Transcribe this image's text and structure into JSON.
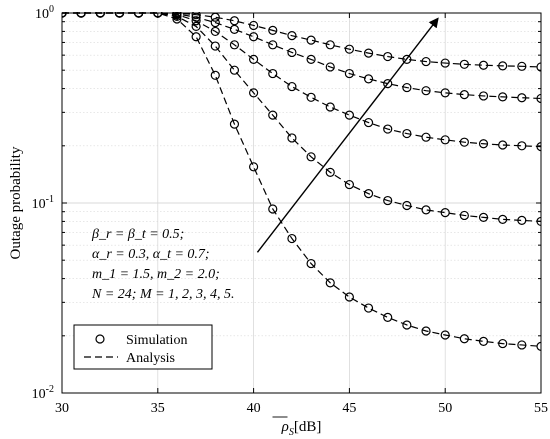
{
  "chart_data": {
    "type": "line",
    "xlabel": "ρ_S [dB]",
    "xlabel_parts": {
      "symbol": "ρ",
      "subscript": "S",
      "unit": "[dB]"
    },
    "ylabel": "Outage probability",
    "xlim": [
      30,
      55
    ],
    "ylim": [
      0.01,
      1
    ],
    "yscale": "log",
    "x_ticks": [
      "30",
      "35",
      "40",
      "45",
      "50",
      "55"
    ],
    "y_ticks": [
      {
        "base": "10",
        "exp": "-2"
      },
      {
        "base": "10",
        "exp": "-1"
      },
      {
        "base": "10",
        "exp": "0"
      }
    ],
    "grid": true,
    "legend": {
      "placement": "lower-left",
      "entries": [
        {
          "label": "Simulation",
          "style": "circle-marker"
        },
        {
          "label": "Analysis",
          "style": "dashed-line"
        }
      ]
    },
    "annotation_lines": [
      "β_r = β_t = 0.5;",
      "α_r = 0.3, α_t = 0.7;",
      "m_1 = 1.5, m_2 = 2.0;",
      "N = 24; M = 1, 2, 3, 4, 5."
    ],
    "x": [
      30,
      31,
      32,
      33,
      34,
      35,
      36,
      37,
      38,
      39,
      40,
      41,
      42,
      43,
      44,
      45,
      46,
      47,
      48,
      49,
      50,
      51,
      52,
      53,
      54,
      55
    ],
    "series": [
      {
        "values": [
          1.0,
          1.0,
          1.0,
          1.0,
          1.0,
          1.0,
          0.93,
          0.75,
          0.47,
          0.26,
          0.155,
          0.093,
          0.065,
          0.048,
          0.038,
          0.032,
          0.028,
          0.025,
          0.0228,
          0.0212,
          0.0202,
          0.0193,
          0.0187,
          0.0182,
          0.0179,
          0.0176
        ]
      },
      {
        "values": [
          1.0,
          1.0,
          1.0,
          1.0,
          1.0,
          1.0,
          0.96,
          0.85,
          0.67,
          0.5,
          0.38,
          0.29,
          0.22,
          0.175,
          0.145,
          0.125,
          0.112,
          0.103,
          0.097,
          0.092,
          0.089,
          0.086,
          0.084,
          0.082,
          0.081,
          0.08
        ]
      },
      {
        "values": [
          1.0,
          1.0,
          1.0,
          1.0,
          1.0,
          1.0,
          0.98,
          0.91,
          0.8,
          0.68,
          0.57,
          0.48,
          0.41,
          0.36,
          0.32,
          0.29,
          0.265,
          0.245,
          0.232,
          0.222,
          0.215,
          0.209,
          0.205,
          0.202,
          0.2,
          0.198
        ]
      },
      {
        "values": [
          1.0,
          1.0,
          1.0,
          1.0,
          1.0,
          1.0,
          0.99,
          0.95,
          0.89,
          0.82,
          0.75,
          0.68,
          0.62,
          0.57,
          0.52,
          0.48,
          0.45,
          0.425,
          0.405,
          0.39,
          0.38,
          0.372,
          0.366,
          0.362,
          0.358,
          0.355
        ]
      },
      {
        "values": [
          1.0,
          1.0,
          1.0,
          1.0,
          1.0,
          1.0,
          1.0,
          0.98,
          0.95,
          0.91,
          0.86,
          0.81,
          0.76,
          0.72,
          0.68,
          0.645,
          0.615,
          0.59,
          0.57,
          0.555,
          0.545,
          0.537,
          0.531,
          0.527,
          0.524,
          0.52
        ]
      }
    ],
    "arrow": {
      "from": {
        "x": 40.2,
        "y": 0.055
      },
      "to": {
        "x": 49.6,
        "y": 0.93
      }
    },
    "colors": {
      "line": "#000000",
      "grid": "#d9d9d9",
      "background": "#ffffff"
    }
  }
}
